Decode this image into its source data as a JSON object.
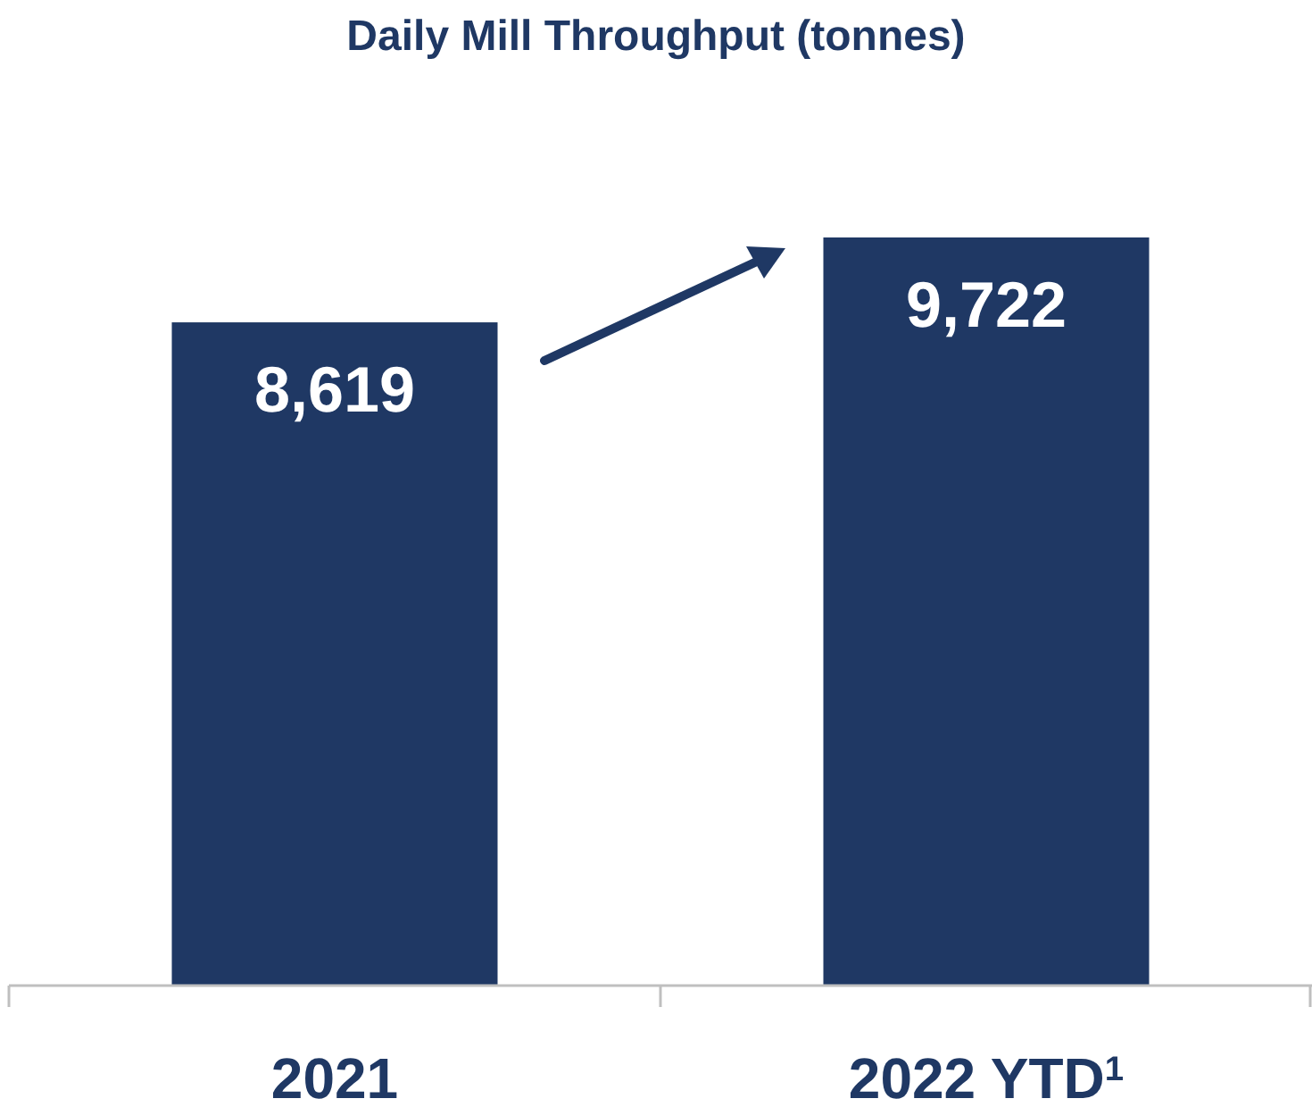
{
  "chart_data": {
    "type": "bar",
    "title": "Daily Mill Throughput (tonnes)",
    "categories": [
      "2021",
      "2022 YTD$^{1}$"
    ],
    "values": [
      8619,
      9722
    ],
    "value_labels": [
      "8,619",
      "9,722"
    ],
    "color": "#1f3864",
    "tick_labels": "x"
  }
}
